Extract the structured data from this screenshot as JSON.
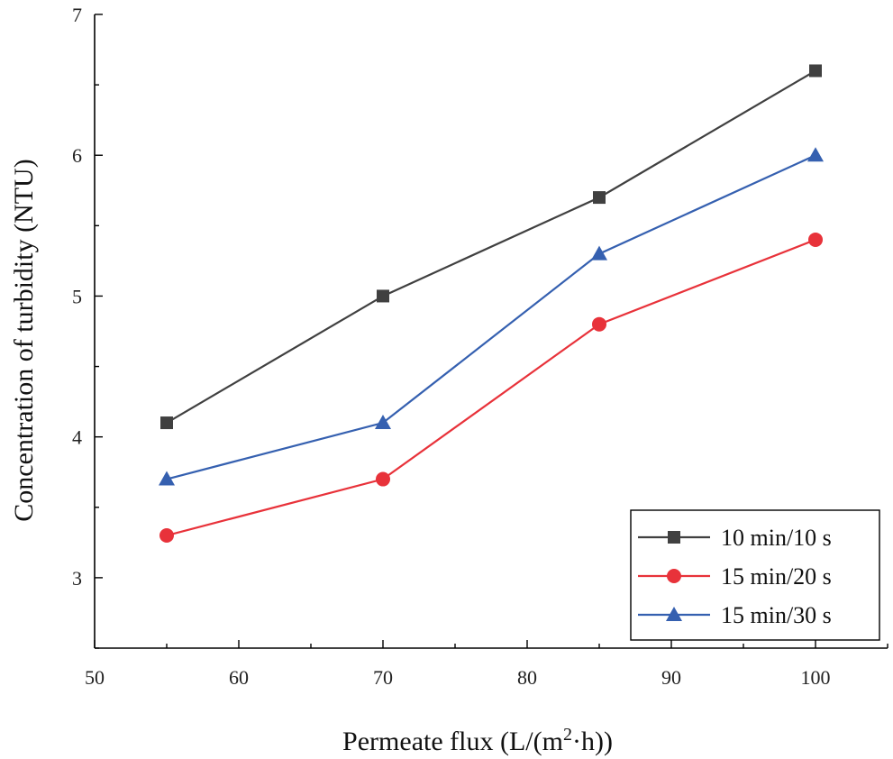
{
  "chart_data": {
    "type": "line",
    "title": "",
    "xlabel": "Permeate flux (L/(m²·h))",
    "xlabel_parts": {
      "pre": "Permeate flux (L/(m",
      "sup": "2",
      "post": "·h))"
    },
    "ylabel": "Concentration of turbidity (NTU)",
    "xlim": [
      50,
      105
    ],
    "ylim": [
      2.5,
      7
    ],
    "xticks": [
      50,
      60,
      70,
      80,
      90,
      100
    ],
    "yticks": [
      3,
      4,
      5,
      6,
      7
    ],
    "x": [
      55,
      70,
      85,
      100
    ],
    "series": [
      {
        "name": "10 min/10 s",
        "values": [
          4.1,
          5.0,
          5.7,
          6.6
        ],
        "color": "#404040",
        "marker": "square"
      },
      {
        "name": "15 min/20 s",
        "values": [
          3.3,
          3.7,
          4.8,
          5.4
        ],
        "color": "#e8323a",
        "marker": "circle"
      },
      {
        "name": "15 min/30 s",
        "values": [
          3.7,
          4.1,
          5.3,
          6.0
        ],
        "color": "#3560b0",
        "marker": "triangle"
      }
    ],
    "legend_position": "bottom-right",
    "grid": false
  }
}
